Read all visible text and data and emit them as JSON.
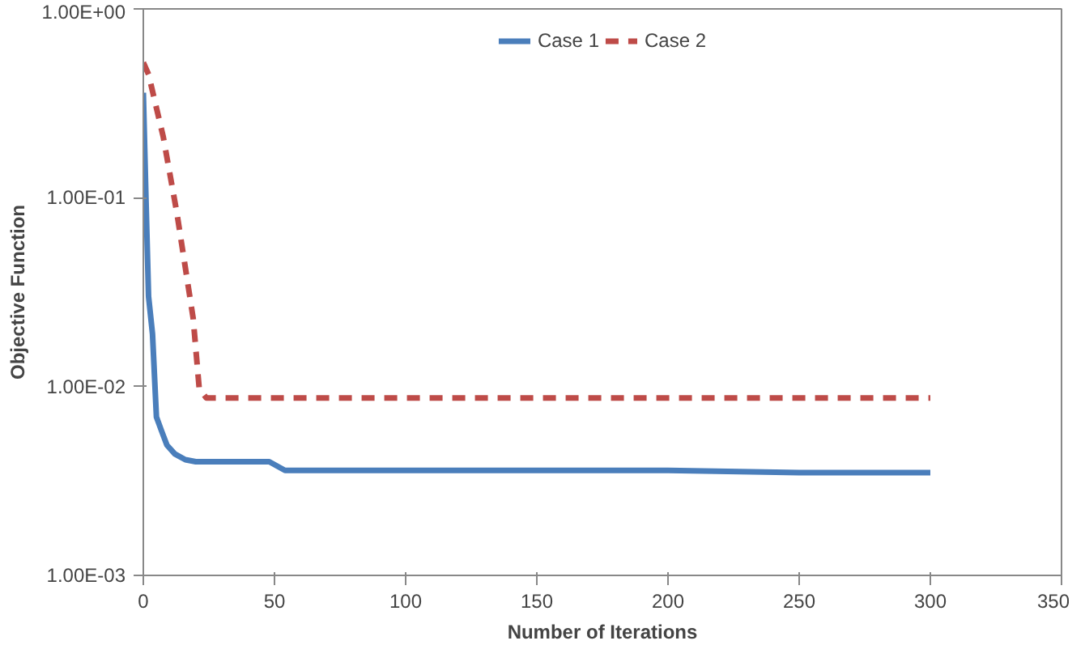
{
  "chart_data": {
    "type": "line",
    "xlabel": "Number of Iterations",
    "ylabel": "Objective Function",
    "x": [
      0,
      1,
      2,
      3.5,
      5,
      7,
      9,
      12,
      16,
      20,
      30,
      48,
      54,
      62,
      100,
      150,
      200,
      250,
      300
    ],
    "series": [
      {
        "name": "Case 1",
        "color": "#4a7ebb",
        "line_style": "solid",
        "values": [
          0.36,
          0.1,
          0.03,
          0.019,
          0.0069,
          0.0058,
          0.0049,
          0.0044,
          0.0041,
          0.004,
          0.004,
          0.004,
          0.0036,
          0.0036,
          0.0036,
          0.0036,
          0.0036,
          0.0035,
          0.0035
        ]
      },
      {
        "name": "Case 2",
        "color": "#be4b48",
        "line_style": "dashed",
        "x": [
          0,
          2,
          7.6,
          12.8,
          19,
          21.3,
          24,
          50,
          100,
          150,
          200,
          250,
          300
        ],
        "values": [
          0.52,
          0.45,
          0.21,
          0.083,
          0.023,
          0.0098,
          0.0087,
          0.0087,
          0.0087,
          0.0087,
          0.0087,
          0.0087,
          0.0087
        ]
      }
    ],
    "log": "y",
    "xlim": [
      0,
      350
    ],
    "xticks": [
      0,
      50,
      100,
      150,
      200,
      250,
      300,
      350
    ],
    "ylim": [
      0.001,
      1
    ],
    "yticks": [
      {
        "value": 0.001,
        "label": "1.00E-03"
      },
      {
        "value": 0.01,
        "label": "1.00E-02"
      },
      {
        "value": 0.1,
        "label": "1.00E-01"
      },
      {
        "value": 1,
        "label": "1.00E+00"
      }
    ],
    "grid": false,
    "legend": "top"
  }
}
